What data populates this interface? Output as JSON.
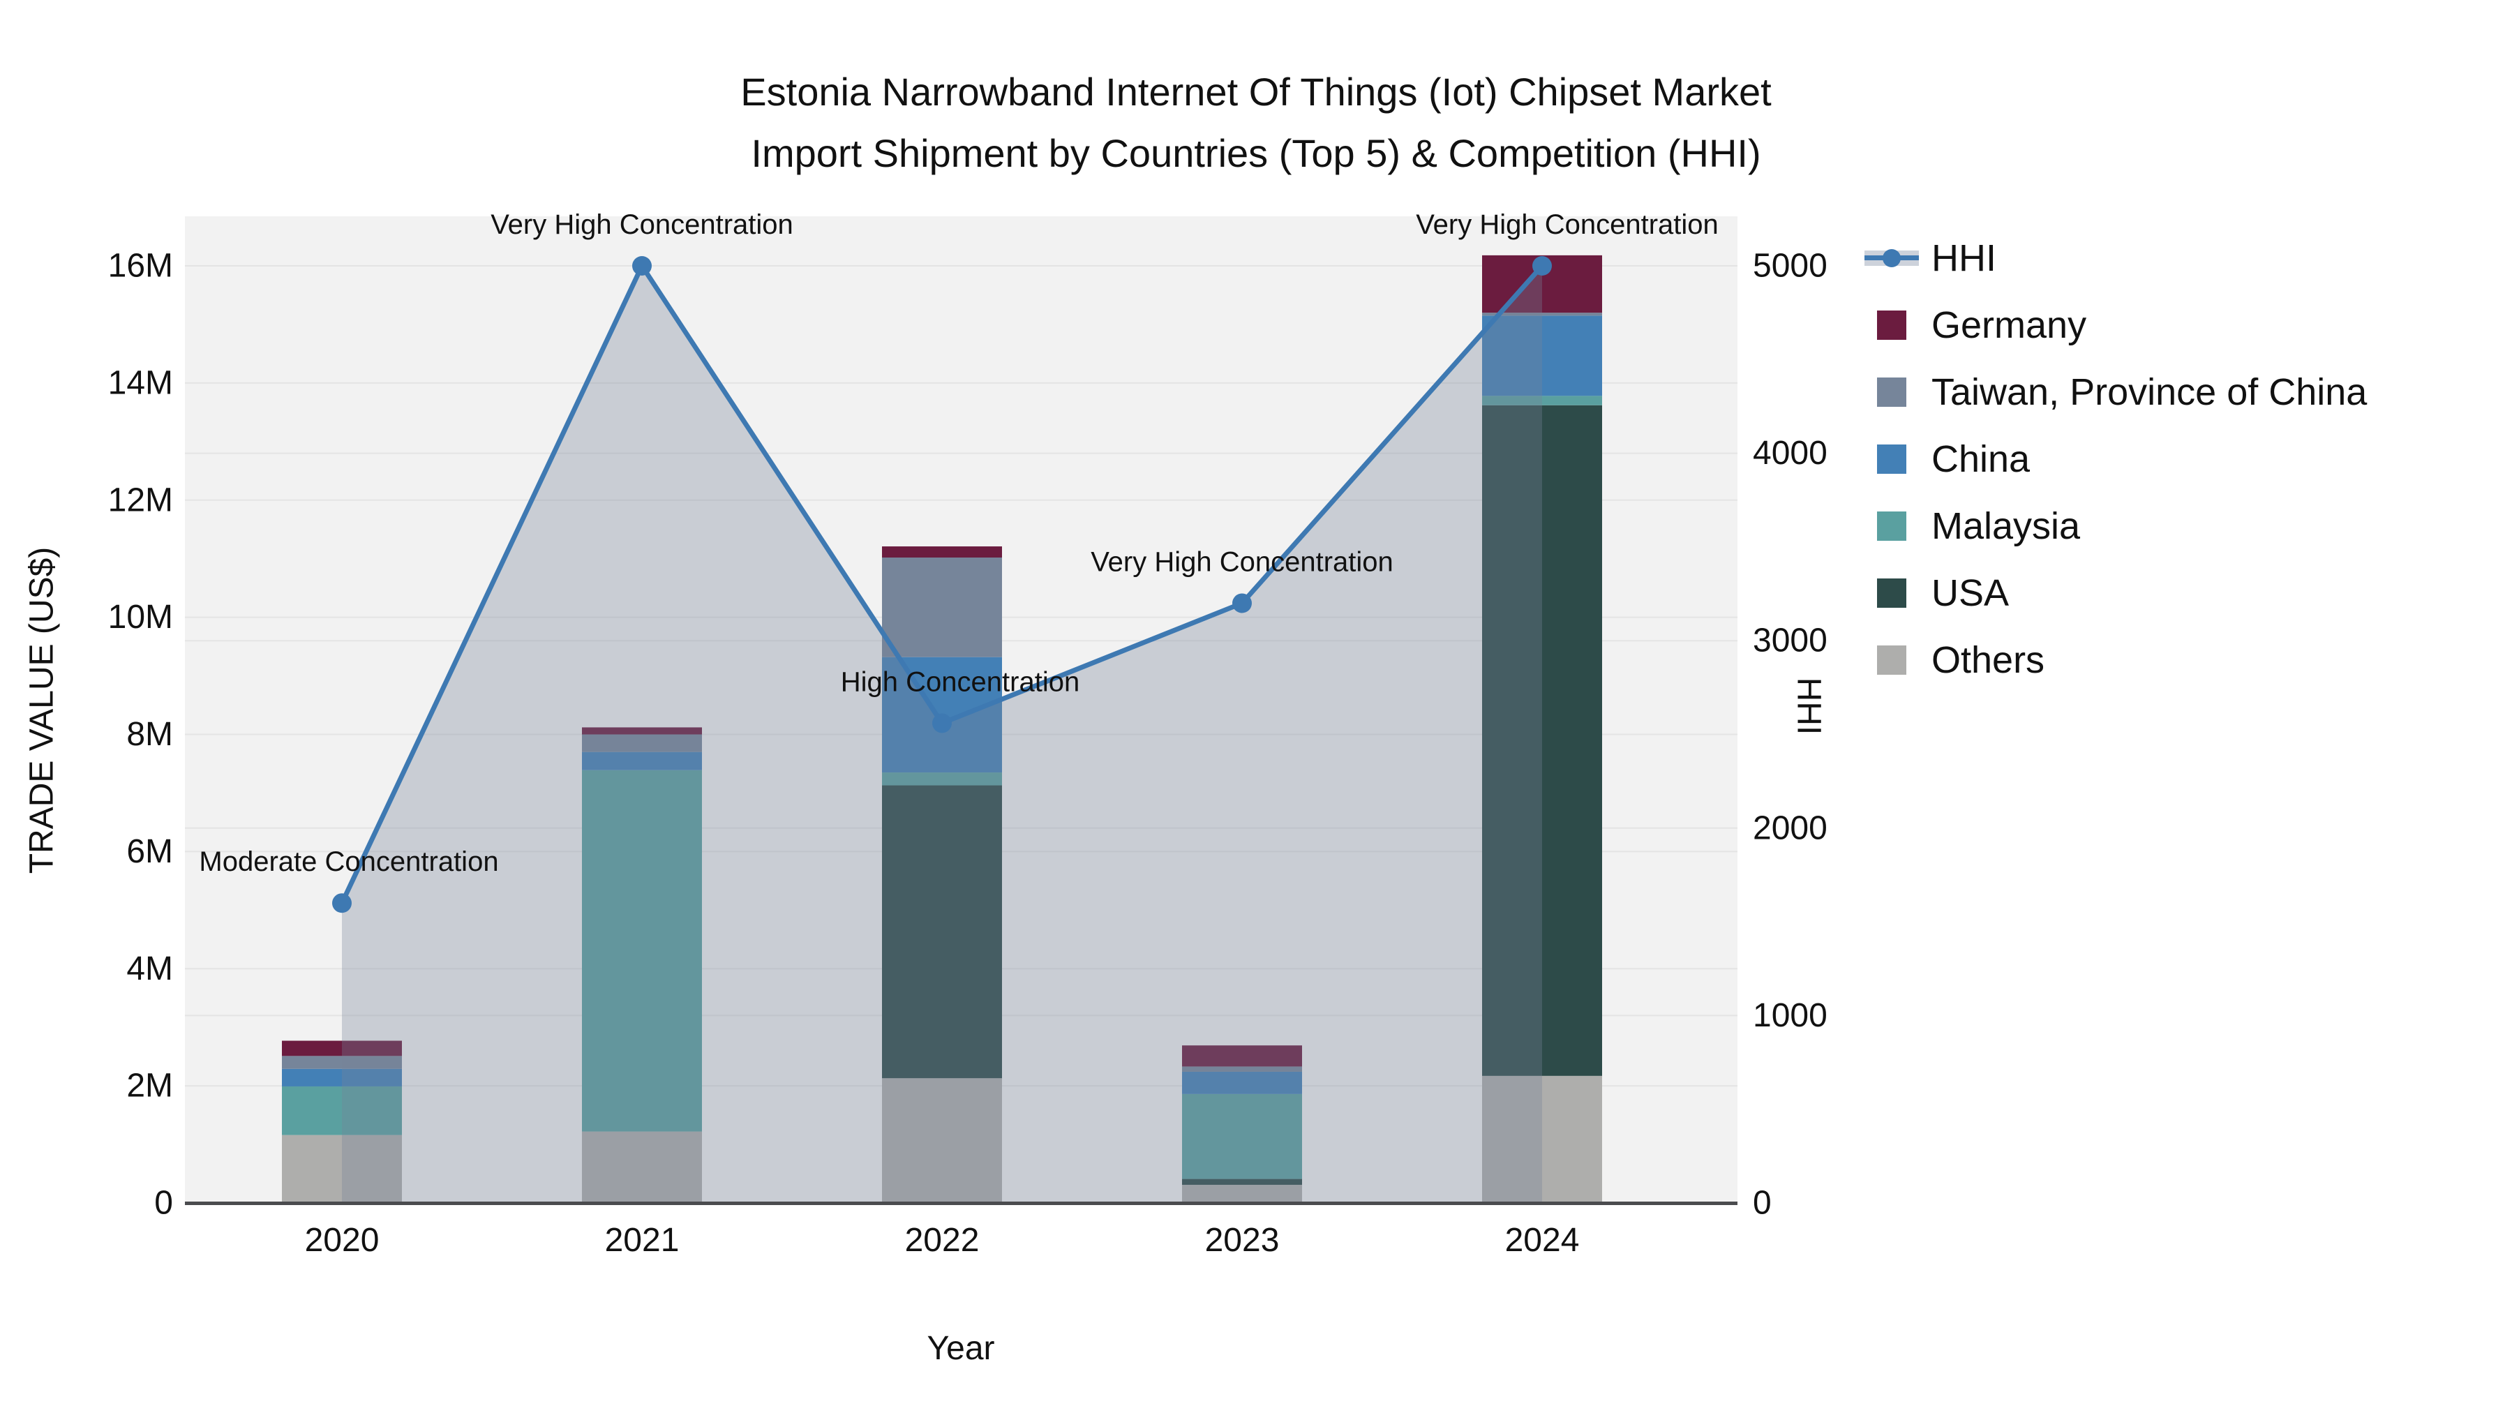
{
  "title_line1": "Estonia Narrowband Internet Of Things (Iot) Chipset Market",
  "title_line2": "Import Shipment by Countries (Top 5) & Competition (HHI)",
  "legend": {
    "items": [
      {
        "label": "HHI",
        "type": "line",
        "color": "#3e79b2"
      },
      {
        "label": "Germany",
        "type": "swatch",
        "color": "#6b1c3f"
      },
      {
        "label": "Taiwan, Province of China",
        "type": "swatch",
        "color": "#76859a"
      },
      {
        "label": "China",
        "type": "swatch",
        "color": "#4380b6"
      },
      {
        "label": "Malaysia",
        "type": "swatch",
        "color": "#5aa0a0"
      },
      {
        "label": "USA",
        "type": "swatch",
        "color": "#2d4b49"
      },
      {
        "label": "Others",
        "type": "swatch",
        "color": "#aeaeac"
      }
    ]
  },
  "chart_data": {
    "type": "bar",
    "stacked": true,
    "title": "Estonia Narrowband Internet Of Things (Iot) Chipset Market Import Shipment by Countries (Top 5) & Competition (HHI)",
    "categories": [
      "2020",
      "2021",
      "2022",
      "2023",
      "2024"
    ],
    "value_unit": "million US$",
    "series": [
      {
        "name": "Germany",
        "color": "#6b1c3f",
        "values": [
          0.26,
          0.12,
          0.19,
          0.36,
          0.98
        ]
      },
      {
        "name": "Taiwan, Province of China",
        "color": "#76859a",
        "values": [
          0.22,
          0.3,
          1.7,
          0.09,
          0.05
        ]
      },
      {
        "name": "China",
        "color": "#4380b6",
        "values": [
          0.3,
          0.31,
          1.97,
          0.38,
          1.37
        ]
      },
      {
        "name": "Malaysia",
        "color": "#5aa0a0",
        "values": [
          0.83,
          6.17,
          0.22,
          1.45,
          0.16
        ]
      },
      {
        "name": "USA",
        "color": "#2d4b49",
        "values": [
          0.0,
          0.0,
          5.0,
          0.1,
          11.45
        ]
      },
      {
        "name": "Others",
        "color": "#aeaeac",
        "values": [
          1.16,
          1.22,
          2.13,
          0.31,
          2.17
        ]
      }
    ],
    "stack_bottom_to_top": [
      "Others",
      "USA",
      "Malaysia",
      "China",
      "Taiwan, Province of China",
      "Germany"
    ],
    "bar_totals": [
      2.77,
      8.12,
      11.21,
      2.69,
      16.18
    ],
    "line": {
      "name": "HHI",
      "color": "#3e79b2",
      "area_fill": "rgba(119,131,152,0.33)",
      "values": [
        1600,
        5000,
        2560,
        3200,
        5000
      ]
    },
    "annotations": [
      {
        "category": "2020",
        "text": "Moderate Concentration",
        "dx": 10
      },
      {
        "category": "2021",
        "text": "Very High Concentration",
        "dx": 0
      },
      {
        "category": "2022",
        "text": "High Concentration",
        "dx": 26
      },
      {
        "category": "2023",
        "text": "Very High Concentration",
        "dx": 0
      },
      {
        "category": "2024",
        "text": "Very High Concentration",
        "dx": 36
      }
    ],
    "left_axis": {
      "label": "TRADE VALUE (US$)",
      "ticks": [
        {
          "label": "0",
          "value": 0
        },
        {
          "label": "2M",
          "value": 2
        },
        {
          "label": "4M",
          "value": 4
        },
        {
          "label": "6M",
          "value": 6
        },
        {
          "label": "8M",
          "value": 8
        },
        {
          "label": "10M",
          "value": 10
        },
        {
          "label": "12M",
          "value": 12
        },
        {
          "label": "14M",
          "value": 14
        },
        {
          "label": "16M",
          "value": 16
        }
      ]
    },
    "right_axis": {
      "label": "HHI",
      "ticks": [
        {
          "label": "0",
          "value": 0
        },
        {
          "label": "1000",
          "value": 1000
        },
        {
          "label": "2000",
          "value": 2000
        },
        {
          "label": "3000",
          "value": 3000
        },
        {
          "label": "4000",
          "value": 4000
        },
        {
          "label": "5000",
          "value": 5000
        }
      ]
    },
    "x_axis": {
      "label": "Year"
    },
    "grid": true,
    "legend_position": "right",
    "colors": {
      "plot_background": "#f2f2f2",
      "gridline": "#e4e4e4",
      "axis_line": "#4a4b4e",
      "text": "#111111"
    }
  }
}
